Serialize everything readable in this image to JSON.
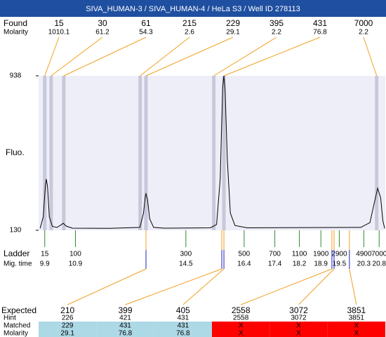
{
  "chart_data": {
    "type": "electropherogram",
    "title": "SIVA_HUMAN-3 / SIVA_HUMAN-4 / HeLa S3 / Well ID 278113",
    "title_color": "#1f4fa0",
    "plot_color": "#eeeef9",
    "band_color": "#c8c8da",
    "guide_color": "#f0a020",
    "y_label": "Fluo.",
    "ylim": [
      130,
      938
    ],
    "yticks": [
      130,
      938
    ],
    "xlim": [
      9.7,
      21.0
    ],
    "found": {
      "label": "Found",
      "molarity_label": "Molarity",
      "sizes": [
        15,
        30,
        61,
        215,
        229,
        395,
        431,
        7000
      ],
      "molarity": [
        1010.1,
        61.2,
        54.3,
        2.6,
        29.1,
        2.2,
        76.8,
        2.2
      ],
      "times": [
        9.9,
        10.11,
        10.52,
        13.01,
        13.2,
        15.41,
        15.74,
        20.72
      ]
    },
    "trace": {
      "color": "#000000",
      "x": [
        9.75,
        9.85,
        9.92,
        9.95,
        9.99,
        10.05,
        10.15,
        10.3,
        10.45,
        10.5,
        10.6,
        10.8,
        12,
        13.0,
        13.12,
        13.18,
        13.2,
        13.25,
        13.32,
        13.45,
        13.8,
        15.3,
        15.5,
        15.62,
        15.7,
        15.74,
        15.78,
        15.85,
        15.95,
        16.1,
        16.5,
        20.2,
        20.5,
        20.65,
        20.75,
        20.85,
        20.92,
        20.98
      ],
      "y": [
        140,
        200,
        360,
        398,
        360,
        200,
        150,
        145,
        160,
        167,
        152,
        141,
        140,
        145,
        220,
        310,
        321,
        290,
        190,
        145,
        141,
        143,
        160,
        400,
        880,
        938,
        860,
        500,
        220,
        155,
        143,
        145,
        170,
        280,
        350,
        300,
        180,
        140
      ]
    },
    "ladder": {
      "label": "Ladder",
      "time_label": "Mig. time",
      "color": "#2e8b2e",
      "sizes": [
        15,
        100,
        300,
        500,
        700,
        1100,
        1900,
        2900,
        4900,
        7000
      ],
      "times": [
        9.9,
        10.9,
        14.5,
        16.4,
        17.4,
        18.2,
        18.9,
        19.5,
        20.3,
        20.8
      ]
    },
    "expected": {
      "label": "Expected",
      "hint_label": "Hint",
      "matched_label": "Matched",
      "molarity_label": "Molarity",
      "tick_color": "#2020c0",
      "matched_color": "#add8e6",
      "unmatched_color": "#ff0000",
      "sizes": [
        210,
        399,
        405,
        2558,
        3072,
        3851
      ],
      "times": [
        13.2,
        15.67,
        15.74,
        19.26,
        19.33,
        19.83
      ],
      "hint": [
        226,
        421,
        431,
        2558,
        3072,
        3851
      ],
      "matched": [
        229,
        431,
        431,
        "X",
        "X",
        "X"
      ],
      "molarity": [
        29.1,
        76.8,
        76.8,
        "X",
        "X",
        "X"
      ]
    }
  }
}
